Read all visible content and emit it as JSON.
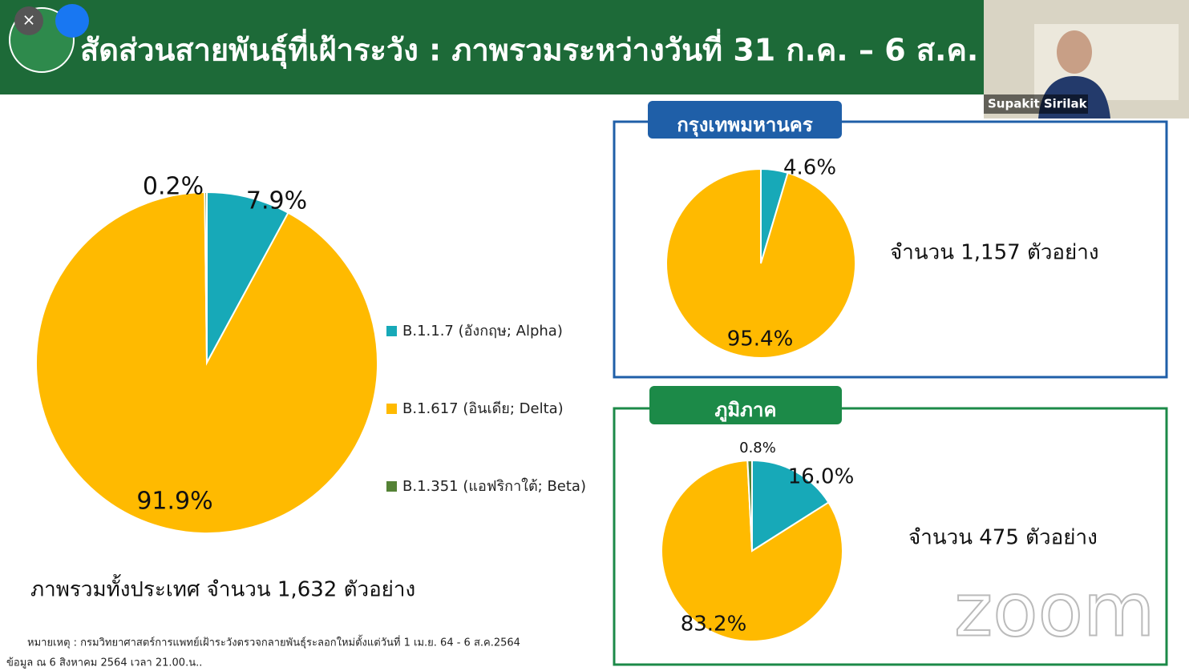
{
  "header": {
    "title": "สัดส่วนสายพันธุ์ที่เฝ้าระวัง : ภาพรวมระหว่างวันที่ 31 ก.ค. – 6 ส.ค."
  },
  "video": {
    "name": "Supakit Sirilak"
  },
  "watermark": "zoom",
  "footnotes": [
    "หมายเหตุ :  กรมวิทยาศาสตร์การแพทย์เฝ้าระวังตรวจกลายพันธุ์ระลอกใหม่ตั้งแต่วันที่ 1 เม.ย. 64 -  6 ส.ค.2564",
    "ข้อมูล ณ 6 สิงหาคม 2564 เวลา 21.00.น.."
  ],
  "chart_data": [
    {
      "type": "pie",
      "caption": "ภาพรวมทั้งประเทศ จำนวน 1,632 ตัวอย่าง",
      "categories": [
        "B.1.1.7 (อังกฤษ; Alpha)",
        "B.1.617 (อินเดีย; Delta)",
        "B.1.351 (แอฟริกาใต้; Beta)"
      ],
      "values": [
        7.9,
        91.9,
        0.2
      ],
      "value_labels": [
        "7.9%",
        "91.9%",
        "0.2%"
      ],
      "colors": [
        "#17a9b8",
        "#ffba00",
        "#548235"
      ],
      "legend": "right"
    },
    {
      "type": "pie",
      "title": "กรุงเทพมหานคร",
      "note": "จำนวน 1,157 ตัวอย่าง",
      "values": [
        4.6,
        95.4
      ],
      "value_labels": [
        "4.6%",
        "95.4%"
      ],
      "colors": [
        "#17a9b8",
        "#ffba00"
      ]
    },
    {
      "type": "pie",
      "title": "ภูมิภาค",
      "note": "จำนวน 475 ตัวอย่าง",
      "values": [
        16.0,
        83.2,
        0.8
      ],
      "value_labels": [
        "16.0%",
        "83.2%",
        "0.8%"
      ],
      "colors": [
        "#17a9b8",
        "#ffba00",
        "#548235"
      ]
    }
  ]
}
